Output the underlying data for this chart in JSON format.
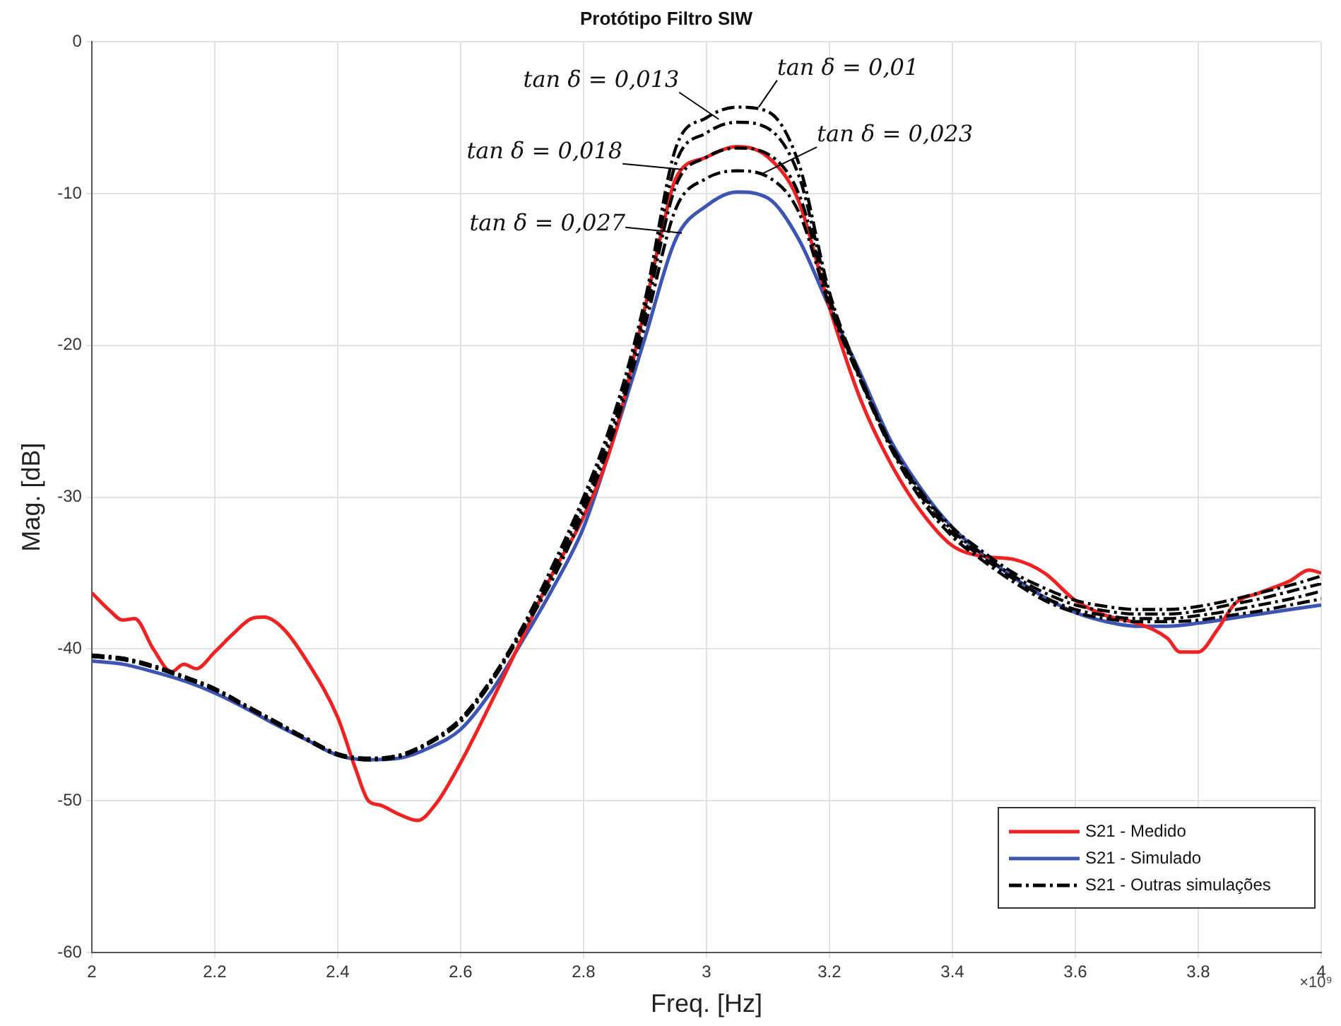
{
  "chart_data": {
    "type": "line",
    "title": "Protótipo Filtro SIW",
    "xlabel": "Freq. [Hz]",
    "ylabel": "Mag. [dB]",
    "x": [
      2.0,
      2.05,
      2.1,
      2.15,
      2.2,
      2.25,
      2.3,
      2.35,
      2.4,
      2.45,
      2.5,
      2.55,
      2.6,
      2.65,
      2.7,
      2.75,
      2.8,
      2.85,
      2.9,
      2.95,
      3.0,
      3.05,
      3.1,
      3.15,
      3.2,
      3.25,
      3.3,
      3.35,
      3.4,
      3.45,
      3.5,
      3.55,
      3.6,
      3.65,
      3.7,
      3.75,
      3.8,
      3.85,
      3.9,
      3.95,
      4.0
    ],
    "series": [
      {
        "name": "S21 - Medido",
        "color": "#ee2222",
        "line_style": "solid",
        "x": [
          2.0,
          2.03,
          2.05,
          2.07,
          2.1,
          2.13,
          2.15,
          2.17,
          2.2,
          2.23,
          2.26,
          2.28,
          2.31,
          2.35,
          2.4,
          2.43,
          2.45,
          2.47,
          2.5,
          2.53,
          2.56,
          2.6,
          2.65,
          2.7,
          2.75,
          2.8,
          2.85,
          2.9,
          2.93,
          2.95,
          3.0,
          3.05,
          3.1,
          3.15,
          3.2,
          3.25,
          3.3,
          3.35,
          3.4,
          3.45,
          3.5,
          3.55,
          3.6,
          3.65,
          3.7,
          3.75,
          3.77,
          3.8,
          3.83,
          3.86,
          3.9,
          3.95,
          3.98,
          4.0
        ],
        "values": [
          -36.3,
          -37.5,
          -38.1,
          -38.0,
          -40.0,
          -41.5,
          -41.0,
          -41.3,
          -40.2,
          -39.0,
          -38.0,
          -37.9,
          -38.6,
          -40.8,
          -44.5,
          -48.0,
          -50.0,
          -50.3,
          -50.9,
          -51.3,
          -50.2,
          -47.5,
          -43.5,
          -39.3,
          -35.0,
          -31.3,
          -26.0,
          -17.5,
          -12.0,
          -9.0,
          -7.6,
          -6.9,
          -7.6,
          -10.5,
          -17.5,
          -23.5,
          -27.8,
          -31.0,
          -33.2,
          -33.9,
          -34.1,
          -35.0,
          -36.8,
          -37.8,
          -38.3,
          -39.3,
          -40.2,
          -40.2,
          -38.8,
          -37.0,
          -36.3,
          -35.5,
          -34.8,
          -35.0
        ]
      },
      {
        "name": "S21 - Simulado",
        "color": "#3c55b4",
        "line_style": "solid",
        "values": [
          -40.8,
          -41.0,
          -41.5,
          -42.1,
          -42.9,
          -43.9,
          -45.0,
          -46.0,
          -47.0,
          -47.3,
          -47.2,
          -46.5,
          -45.3,
          -42.8,
          -39.5,
          -36.0,
          -32.0,
          -26.0,
          -19.5,
          -13.0,
          -10.8,
          -9.9,
          -10.3,
          -13.0,
          -17.5,
          -21.8,
          -26.3,
          -29.5,
          -32.0,
          -33.8,
          -35.3,
          -36.6,
          -37.6,
          -38.2,
          -38.5,
          -38.5,
          -38.3,
          -38.0,
          -37.7,
          -37.4,
          -37.1
        ]
      },
      {
        "name": "S21 - Outras simulações",
        "color": "#000000",
        "line_style": "dashed",
        "values": [
          -40.4,
          -40.6,
          -41.1,
          -41.8,
          -42.6,
          -43.7,
          -44.8,
          -45.9,
          -46.9,
          -47.2,
          -47.0,
          -46.1,
          -44.6,
          -42.0,
          -38.6,
          -34.5,
          -30.0,
          -24.5,
          -17.0,
          -7.0,
          -5.0,
          -4.3,
          -4.6,
          -8.0,
          -16.5,
          -22.0,
          -26.5,
          -29.7,
          -32.0,
          -33.6,
          -35.0,
          -36.0,
          -36.8,
          -37.2,
          -37.4,
          -37.4,
          -37.2,
          -36.8,
          -36.3,
          -35.8,
          -35.2
        ]
      },
      {
        "color": "#000000",
        "line_style": "dashed",
        "values": [
          -40.4,
          -40.6,
          -41.1,
          -41.8,
          -42.6,
          -43.7,
          -44.8,
          -45.9,
          -46.9,
          -47.2,
          -47.0,
          -46.1,
          -44.6,
          -42.0,
          -38.7,
          -34.8,
          -30.3,
          -24.8,
          -17.5,
          -8.0,
          -6.0,
          -5.3,
          -5.7,
          -8.8,
          -16.8,
          -22.1,
          -26.6,
          -29.8,
          -32.2,
          -33.8,
          -35.2,
          -36.3,
          -37.1,
          -37.5,
          -37.7,
          -37.7,
          -37.5,
          -37.1,
          -36.7,
          -36.2,
          -35.7
        ]
      },
      {
        "color": "#000000",
        "line_style": "dashed",
        "values": [
          -40.5,
          -40.7,
          -41.2,
          -41.9,
          -42.7,
          -43.8,
          -44.9,
          -46.0,
          -47.0,
          -47.3,
          -47.1,
          -46.2,
          -44.7,
          -42.1,
          -38.8,
          -35.1,
          -30.6,
          -25.2,
          -18.0,
          -9.5,
          -7.6,
          -7.0,
          -7.4,
          -10.0,
          -17.1,
          -22.2,
          -26.7,
          -30.0,
          -32.4,
          -34.0,
          -35.4,
          -36.6,
          -37.4,
          -37.8,
          -38.0,
          -38.0,
          -37.8,
          -37.5,
          -37.1,
          -36.7,
          -36.2
        ]
      },
      {
        "color": "#000000",
        "line_style": "dashed",
        "values": [
          -40.5,
          -40.7,
          -41.2,
          -41.9,
          -42.7,
          -43.8,
          -44.9,
          -46.0,
          -47.0,
          -47.3,
          -47.1,
          -46.2,
          -44.8,
          -42.2,
          -38.9,
          -35.4,
          -31.0,
          -25.6,
          -18.7,
          -11.0,
          -9.0,
          -8.5,
          -8.9,
          -11.2,
          -17.4,
          -22.3,
          -26.8,
          -30.2,
          -32.6,
          -34.2,
          -35.6,
          -36.8,
          -37.6,
          -38.0,
          -38.2,
          -38.2,
          -38.1,
          -37.8,
          -37.5,
          -37.1,
          -36.7
        ]
      }
    ],
    "xlim": [
      2,
      4
    ],
    "xticks": [
      2,
      2.2,
      2.4,
      2.6,
      2.8,
      3,
      3.2,
      3.4,
      3.6,
      3.8,
      4
    ],
    "ylim": [
      -60,
      0
    ],
    "yticks": [
      -60,
      -50,
      -40,
      -30,
      -20,
      -10,
      0
    ],
    "grid": true,
    "legend": "bottom right",
    "annotations": [
      {
        "text": "tan δ = 0,013",
        "x": 3.02,
        "y": -5.1
      },
      {
        "text": "tan δ = 0,01",
        "x": 3.085,
        "y": -4.3
      },
      {
        "text": "tan δ = 0,018",
        "x": 2.96,
        "y": -8.4
      },
      {
        "text": "tan δ = 0,023",
        "x": 3.09,
        "y": -8.7
      },
      {
        "text": "tan δ = 0,027",
        "x": 2.96,
        "y": -12.6
      },
      "×10⁹"
    ]
  }
}
